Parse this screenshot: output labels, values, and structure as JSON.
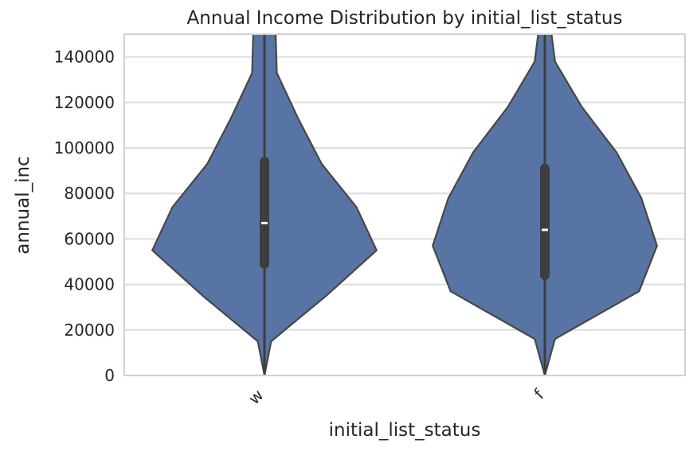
{
  "chart_data": {
    "type": "violin",
    "title": "Annual Income Distribution by initial_list_status",
    "xlabel": "initial_list_status",
    "ylabel": "annual_inc",
    "ylim": [
      0,
      150000
    ],
    "yticks": [
      0,
      20000,
      40000,
      60000,
      80000,
      100000,
      120000,
      140000
    ],
    "ytick_labels": [
      "0",
      "20000",
      "40000",
      "60000",
      "80000",
      "100000",
      "120000",
      "140000"
    ],
    "categories": [
      "w",
      "f"
    ],
    "grid": true,
    "colors": {
      "violin_fill": "#5874a4",
      "violin_edge": "#474747",
      "box": "#3d3d3d",
      "median": "#ffffff"
    },
    "violins": [
      {
        "category": "w",
        "median": 67000,
        "q1": 49000,
        "q3": 94000,
        "whisker_low": 0,
        "whisker_high": 150000,
        "density_profile": [
          {
            "y": 0,
            "w": 0.0
          },
          {
            "y": 15000,
            "w": 0.06
          },
          {
            "y": 35000,
            "w": 0.55
          },
          {
            "y": 55000,
            "w": 1.0
          },
          {
            "y": 74000,
            "w": 0.82
          },
          {
            "y": 93000,
            "w": 0.51
          },
          {
            "y": 113000,
            "w": 0.3
          },
          {
            "y": 133000,
            "w": 0.11
          },
          {
            "y": 150000,
            "w": 0.1
          }
        ]
      },
      {
        "category": "f",
        "median": 64000,
        "q1": 44000,
        "q3": 91000,
        "whisker_low": 0,
        "whisker_high": 150000,
        "density_profile": [
          {
            "y": 0,
            "w": 0.0
          },
          {
            "y": 16000,
            "w": 0.09
          },
          {
            "y": 37000,
            "w": 0.84
          },
          {
            "y": 57000,
            "w": 1.0
          },
          {
            "y": 78000,
            "w": 0.86
          },
          {
            "y": 98000,
            "w": 0.64
          },
          {
            "y": 118000,
            "w": 0.33
          },
          {
            "y": 138000,
            "w": 0.09
          },
          {
            "y": 150000,
            "w": 0.06
          }
        ]
      }
    ]
  }
}
